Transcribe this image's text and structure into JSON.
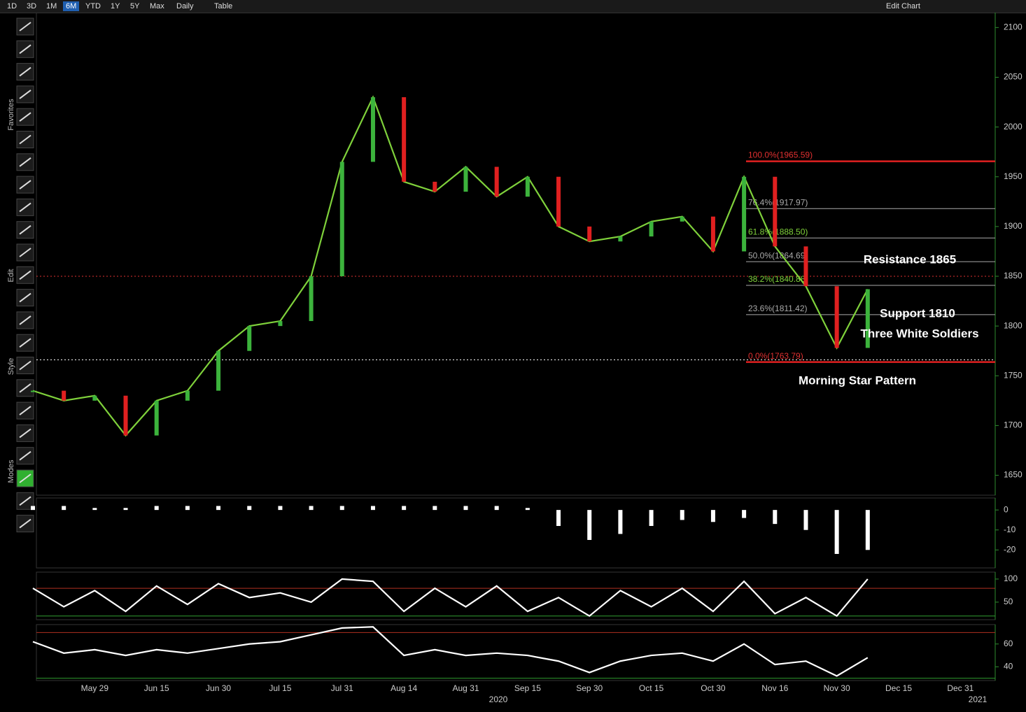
{
  "toolbar": {
    "ranges": [
      "1D",
      "3D",
      "1M",
      "6M",
      "YTD",
      "1Y",
      "5Y",
      "Max"
    ],
    "active": "6M",
    "interval": "Daily",
    "table": "Table",
    "edit": "Edit Chart"
  },
  "sidebar": {
    "sections": [
      "Favorites",
      "Edit",
      "Style",
      "Modes"
    ]
  },
  "chart_data": [
    {
      "type": "line",
      "categories": [
        null,
        null,
        "May 29",
        null,
        "Jun 15",
        null,
        "Jun 30",
        null,
        "Jul 15",
        null,
        "Jul 31",
        null,
        "Aug 14",
        null,
        "Aug 31",
        null,
        "Sep 15",
        null,
        "Sep 30",
        null,
        "Oct 15",
        null,
        "Oct 30",
        null,
        "Nov 16",
        null,
        "Nov 30",
        null,
        "Dec 15",
        null,
        "Dec 31",
        null
      ],
      "values": [
        1735,
        1725,
        1730,
        1690,
        1725,
        1735,
        1775,
        1800,
        1805,
        1850,
        1965,
        2030,
        1945,
        1935,
        1960,
        1930,
        1950,
        1900,
        1885,
        1890,
        1905,
        1910,
        1875,
        1950,
        1880,
        1840,
        1778,
        1837,
        null,
        null,
        null,
        null
      ],
      "color": "#7fd13b",
      "years": [
        "2020",
        "2021"
      ],
      "ylim": [
        1630,
        2115
      ],
      "yticks": [
        1650,
        1700,
        1750,
        1800,
        1850,
        1900,
        1950,
        2000,
        2050,
        2100
      ],
      "fib_levels": [
        {
          "value": 1965.59,
          "label": "100.0%(1965.59)"
        },
        {
          "value": 1917.97,
          "label": "76.4%(1917.97)"
        },
        {
          "value": 1888.5,
          "label": "61.8%(1888.50)"
        },
        {
          "value": 1864.69,
          "label": "50.0%(1864.69)"
        },
        {
          "value": 1840.88,
          "label": "38.2%(1840.88)"
        },
        {
          "value": 1811.42,
          "label": "23.6%(1811.42)"
        },
        {
          "value": 1763.79,
          "label": "0.0%(1763.79)"
        }
      ],
      "reference_lines": [
        {
          "value": 1850,
          "color": "#e03030"
        },
        {
          "value": 1766,
          "color": "#ffffff"
        }
      ],
      "annotations": [
        "Resistance 1865",
        "Support 1810",
        "Three White Soldiers",
        "Morning Star Pattern"
      ]
    },
    {
      "type": "bar",
      "values": [
        2,
        2,
        1,
        1,
        2,
        2,
        2,
        2,
        2,
        2,
        2,
        2,
        2,
        2,
        2,
        2,
        1,
        -8,
        -15,
        -12,
        -8,
        -5,
        -6,
        -4,
        -7,
        -10,
        -22,
        -20,
        null,
        null,
        null,
        null
      ],
      "color": "#ffffff",
      "ylim": [
        -29,
        6
      ],
      "yticks": [
        0,
        -10,
        -20
      ]
    },
    {
      "type": "line",
      "values": [
        80,
        40,
        75,
        30,
        85,
        45,
        90,
        60,
        70,
        50,
        100,
        95,
        30,
        80,
        40,
        85,
        30,
        60,
        20,
        75,
        40,
        80,
        30,
        95,
        25,
        60,
        20,
        100,
        null,
        null,
        null,
        null
      ],
      "color": "#ffffff",
      "ylim": [
        12,
        115
      ],
      "yticks": [
        50,
        100
      ],
      "reference_lines": [
        {
          "value": 80,
          "color": "#b03020"
        },
        {
          "value": 20,
          "color": "#30a030"
        }
      ]
    },
    {
      "type": "line",
      "values": [
        62,
        52,
        55,
        50,
        55,
        52,
        56,
        60,
        62,
        68,
        74,
        75,
        50,
        55,
        50,
        52,
        50,
        45,
        35,
        45,
        50,
        52,
        45,
        60,
        42,
        45,
        32,
        48,
        null,
        null,
        null,
        null
      ],
      "color": "#ffffff",
      "ylim": [
        28,
        77
      ],
      "yticks": [
        40,
        60
      ],
      "reference_lines": [
        {
          "value": 70,
          "color": "#b03020"
        },
        {
          "value": 30,
          "color": "#30a030"
        }
      ]
    }
  ]
}
